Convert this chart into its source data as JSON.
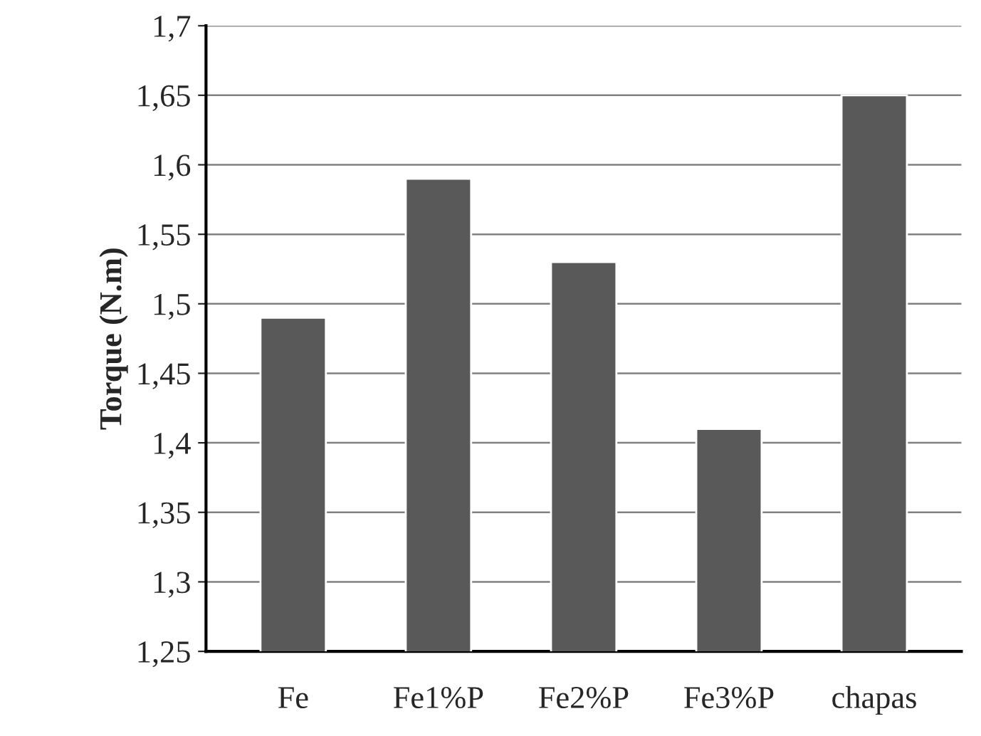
{
  "chart_data": {
    "type": "bar",
    "ylabel": "Torque (N.m)",
    "categories": [
      "Fe",
      "Fe1%P",
      "Fe2%P",
      "Fe3%P",
      "chapas"
    ],
    "values": [
      1.49,
      1.59,
      1.53,
      1.41,
      1.65
    ],
    "color": "#595959",
    "ylim": [
      1.25,
      1.7
    ],
    "yticks": [
      {
        "value": 1.25,
        "label": "1,25"
      },
      {
        "value": 1.3,
        "label": "1,3"
      },
      {
        "value": 1.35,
        "label": "1,35"
      },
      {
        "value": 1.4,
        "label": "1,4"
      },
      {
        "value": 1.45,
        "label": "1,45"
      },
      {
        "value": 1.5,
        "label": "1,5"
      },
      {
        "value": 1.55,
        "label": "1,55"
      },
      {
        "value": 1.6,
        "label": "1,6"
      },
      {
        "value": 1.65,
        "label": "1,65"
      },
      {
        "value": 1.7,
        "label": "1,7"
      }
    ],
    "grid": "y"
  }
}
